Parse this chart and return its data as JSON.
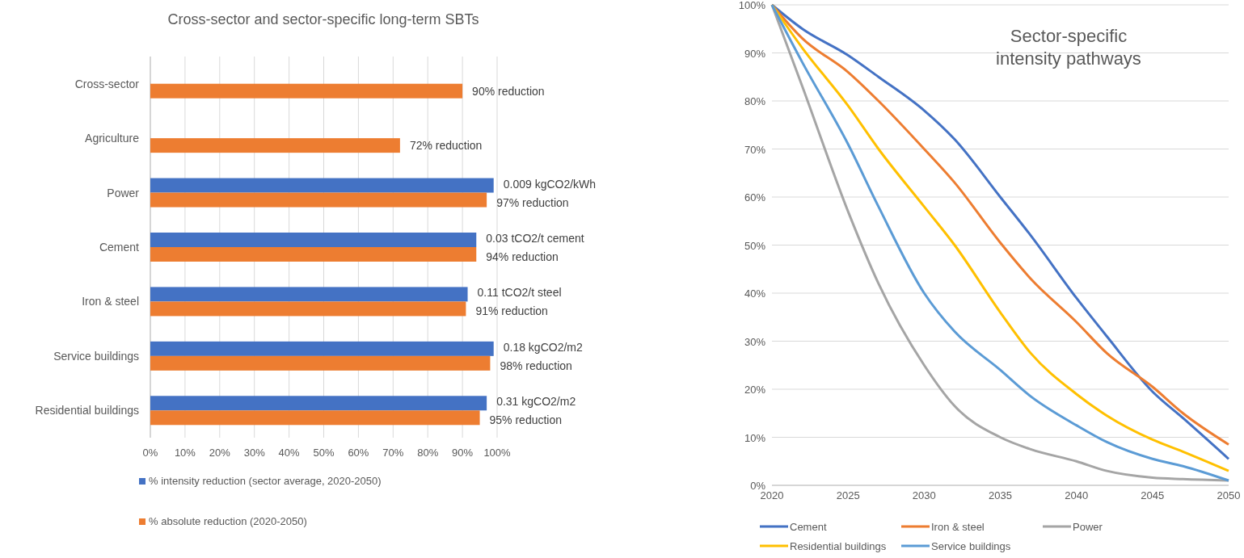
{
  "chart_data": [
    {
      "type": "bar",
      "orientation": "horizontal",
      "title": "Cross-sector and sector-specific long-term SBTs",
      "categories": [
        "Cross-sector",
        "Agriculture",
        "Power",
        "Cement",
        "Iron & steel",
        "Service buildings",
        "Residential buildings"
      ],
      "series": [
        {
          "name": "% intensity reduction (sector average, 2020-2050)",
          "color": "#4472c4",
          "values": [
            null,
            null,
            99,
            94,
            91.5,
            99,
            97
          ]
        },
        {
          "name": "% absolute reduction (2020-2050)",
          "color": "#ed7d31",
          "values": [
            90,
            72,
            97,
            94,
            91,
            98,
            95
          ],
          "value_labels": [
            "90% reduction",
            "72% reduction",
            "97% reduction",
            "94% reduction",
            "91% reduction",
            "98% reduction",
            "95% reduction"
          ]
        }
      ],
      "xlim": [
        0,
        100
      ],
      "xticks": [
        {
          "value": 0,
          "label": "0%"
        },
        {
          "value": 10,
          "label": "10%"
        },
        {
          "value": 20,
          "label": "20%"
        },
        {
          "value": 30,
          "label": "30%"
        },
        {
          "value": 40,
          "label": "40%"
        },
        {
          "value": 50,
          "label": "50%"
        },
        {
          "value": 60,
          "label": "60%"
        },
        {
          "value": 70,
          "label": "70%"
        },
        {
          "value": 80,
          "label": "80%"
        },
        {
          "value": 90,
          "label": "90%"
        },
        {
          "value": 100,
          "label": "100%"
        }
      ],
      "annotations": [
        {
          "text": "0.009 kgCO2/kWh",
          "x": 99,
          "y": "Power"
        },
        {
          "text": "0.03 tCO2/t cement",
          "x": 94,
          "y": "Cement"
        },
        {
          "text": "0.11 tCO2/t steel",
          "x": 91.5,
          "y": "Iron & steel"
        },
        {
          "text": "0.18 kgCO2/m2",
          "x": 99,
          "y": "Service buildings"
        },
        {
          "text": "0.31 kgCO2/m2",
          "x": 97,
          "y": "Residential buildings"
        }
      ],
      "grid": "x",
      "legend": "bottom"
    },
    {
      "type": "line",
      "title": "Sector-specific intensity pathways",
      "x": [
        2020,
        2022,
        2025,
        2027,
        2030,
        2032,
        2035,
        2037,
        2040,
        2042,
        2045,
        2047,
        2050
      ],
      "series": [
        {
          "name": "Cement",
          "color": "#4472c4",
          "values": [
            100,
            95,
            89.5,
            85,
            78,
            72,
            60,
            52,
            39,
            31,
            19.5,
            14,
            5.5
          ]
        },
        {
          "name": "Iron & steel",
          "color": "#ed7d31",
          "values": [
            100,
            93,
            86,
            80,
            70,
            63,
            50.5,
            43,
            34,
            27.5,
            20.5,
            15,
            8.5
          ]
        },
        {
          "name": "Power",
          "color": "#a5a5a5",
          "values": [
            100,
            83,
            57,
            42,
            25,
            16.5,
            10,
            7.5,
            5,
            3,
            1.6,
            1.3,
            1
          ]
        },
        {
          "name": "Residential buildings",
          "color": "#ffc000",
          "values": [
            100,
            91,
            79,
            70,
            58,
            50,
            36,
            27.5,
            19,
            14.5,
            9.5,
            7,
            3
          ]
        },
        {
          "name": "Service buildings",
          "color": "#5b9bd5",
          "values": [
            100,
            88,
            71,
            58,
            40,
            32,
            24,
            18.5,
            12.5,
            9,
            5.5,
            4,
            1
          ]
        }
      ],
      "xlim": [
        2020,
        2050
      ],
      "xticks": [
        2020,
        2025,
        2030,
        2035,
        2040,
        2045,
        2050
      ],
      "ylim": [
        0,
        100
      ],
      "yticks": [
        {
          "value": 0,
          "label": "0%"
        },
        {
          "value": 10,
          "label": "10%"
        },
        {
          "value": 20,
          "label": "20%"
        },
        {
          "value": 30,
          "label": "30%"
        },
        {
          "value": 40,
          "label": "40%"
        },
        {
          "value": 50,
          "label": "50%"
        },
        {
          "value": 60,
          "label": "60%"
        },
        {
          "value": 70,
          "label": "70%"
        },
        {
          "value": 80,
          "label": "80%"
        },
        {
          "value": 90,
          "label": "90%"
        },
        {
          "value": 100,
          "label": "100%"
        }
      ],
      "grid": "y",
      "legend": "bottom",
      "marker": "none",
      "line_style": "solid"
    }
  ]
}
